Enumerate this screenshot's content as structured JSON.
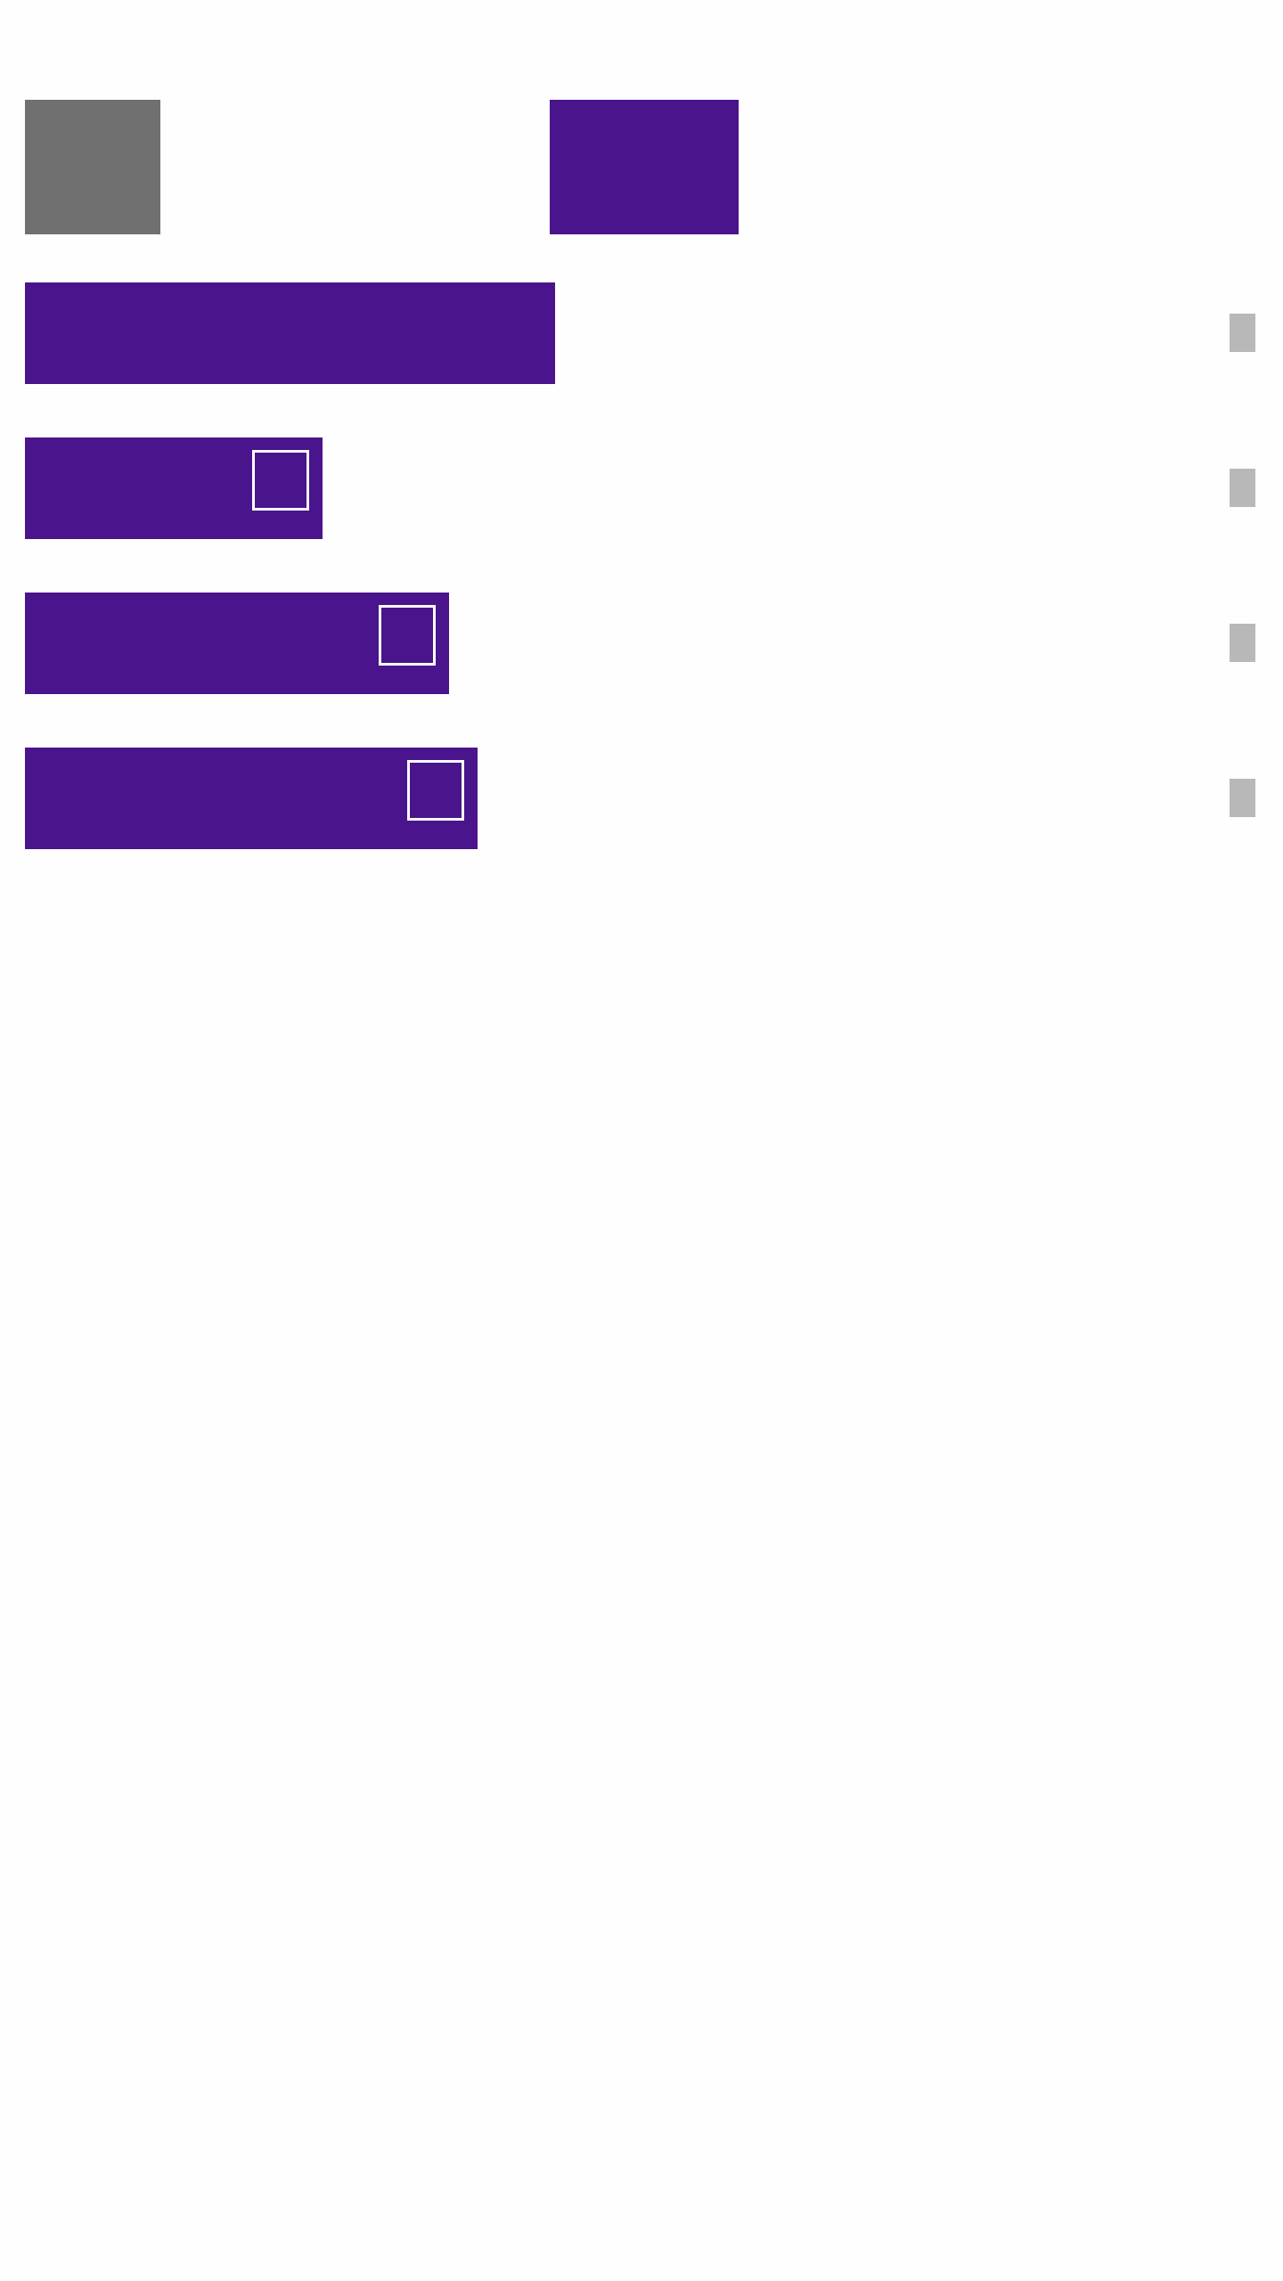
{
  "colors": {
    "background": "#fefefe",
    "accent": "#4a148c",
    "placeholder_gray": "#707070",
    "handle_gray": "#b8b8b8",
    "checkbox_border": "#ffffff"
  },
  "rows": [
    {
      "has_checkbox": false,
      "checked": false
    },
    {
      "has_checkbox": true,
      "checked": false
    },
    {
      "has_checkbox": true,
      "checked": false
    },
    {
      "has_checkbox": true,
      "checked": false
    }
  ]
}
